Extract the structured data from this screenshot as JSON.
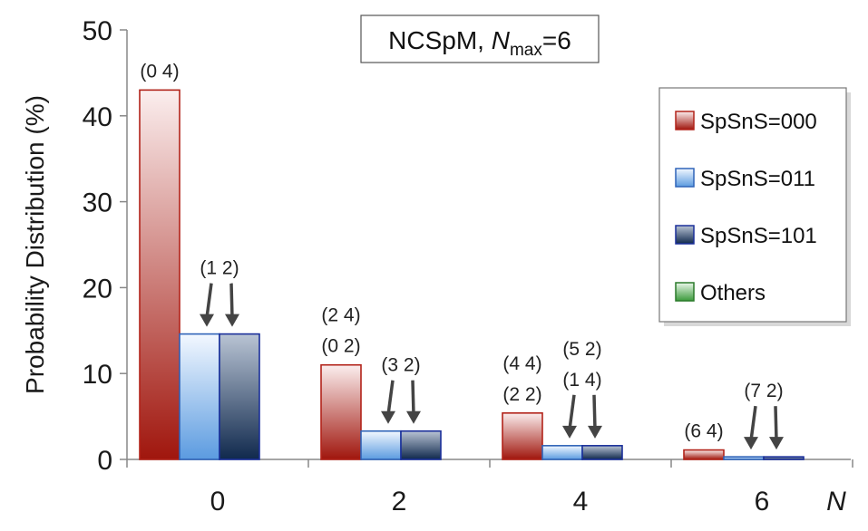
{
  "chart_data": {
    "type": "bar",
    "title_parts": {
      "pre": "NCSpM, ",
      "var": "N",
      "sub": "max",
      "post": "=6"
    },
    "ylabel": "Probability Distribution (%)",
    "xlabel": "N",
    "ylim": [
      0,
      50
    ],
    "yticks": [
      "0",
      "10",
      "20",
      "30",
      "40",
      "50"
    ],
    "categories": [
      "0",
      "2",
      "4",
      "6"
    ],
    "series": [
      {
        "name": "SpSnS=000",
        "values": [
          43.0,
          11.0,
          5.4,
          1.1
        ],
        "color_top": "#fbeeee",
        "color_bottom": "#a0160d",
        "stroke": "#b2231a"
      },
      {
        "name": "SpSnS=011",
        "values": [
          14.6,
          3.3,
          1.6,
          0.3
        ],
        "color_top": "#f3f8ff",
        "color_bottom": "#5b9be0",
        "stroke": "#2f63b8"
      },
      {
        "name": "SpSnS=101",
        "values": [
          14.6,
          3.3,
          1.6,
          0.3
        ],
        "color_top": "#b9c4d4",
        "color_bottom": "#10294d",
        "stroke": "#1a2f9a"
      },
      {
        "name": "Others",
        "values": [
          0,
          0,
          0,
          0
        ],
        "color_top": "#eaf7ea",
        "color_bottom": "#3b9a3b",
        "stroke": "#2a7a2a"
      }
    ],
    "annotations": [
      {
        "group": 0,
        "lines": [
          "(0 4)"
        ],
        "target": "first"
      },
      {
        "group": 0,
        "lines": [
          "(1 2)"
        ],
        "target": "pair",
        "arrows": true
      },
      {
        "group": 1,
        "lines": [
          "(2 4)",
          "(0 2)"
        ],
        "target": "first"
      },
      {
        "group": 1,
        "lines": [
          "(3 2)"
        ],
        "target": "pair",
        "arrows": true
      },
      {
        "group": 2,
        "lines": [
          "(4 4)",
          "(2 2)"
        ],
        "target": "first"
      },
      {
        "group": 2,
        "lines": [
          "(5 2)",
          "(1 4)"
        ],
        "target": "pair",
        "arrows": true
      },
      {
        "group": 3,
        "lines": [
          "(6 4)"
        ],
        "target": "first"
      },
      {
        "group": 3,
        "lines": [
          "(7 2)"
        ],
        "target": "pair",
        "arrows": true
      }
    ],
    "legend_position": "right"
  }
}
